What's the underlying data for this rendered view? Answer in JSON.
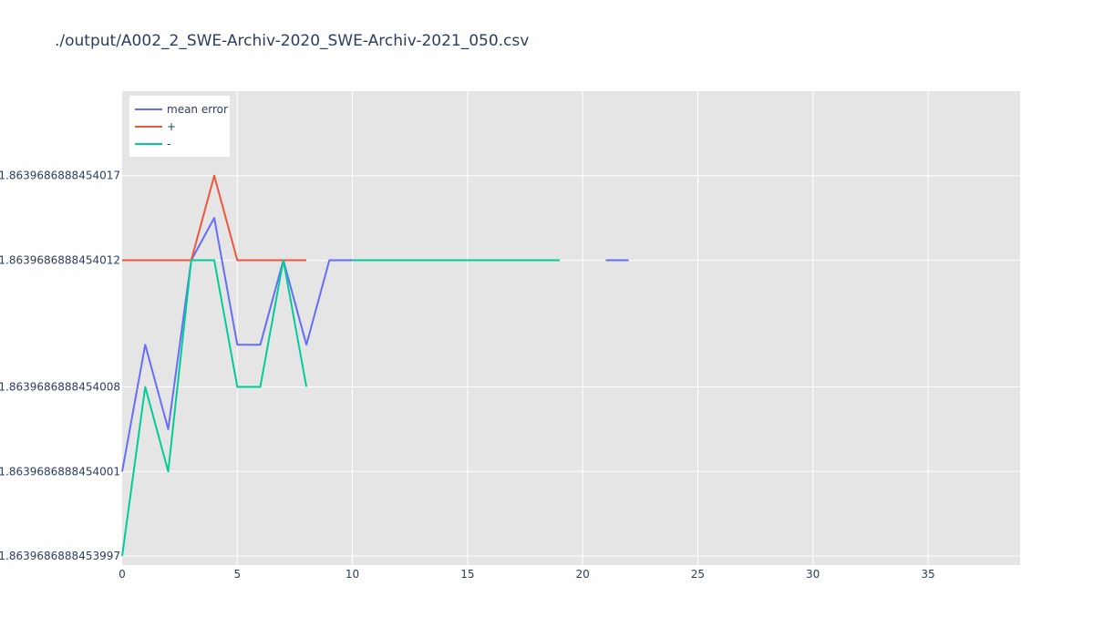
{
  "chart_data": {
    "type": "line",
    "title": "./output/A002_2_SWE-Archiv-2020_SWE-Archiv-2021_050.csv",
    "xlabel": "",
    "ylabel": "",
    "xlim": [
      0,
      39
    ],
    "xticks": [
      0,
      5,
      10,
      15,
      20,
      25,
      30,
      35
    ],
    "ylim_offset_units": "1e-16 above 1.8639686888453997",
    "ytick_labels": [
      "1.8639686888453997",
      "1.8639686888454001",
      "1.8639686888454008",
      "1.8639686888454012",
      "1.8639686888454017"
    ],
    "yticks_offset": [
      0,
      4,
      8,
      14,
      18
    ],
    "yrange_offset": [
      0,
      22
    ],
    "grid": true,
    "legend_position": "top-left",
    "series": [
      {
        "name": "mean error",
        "color": "#636efa",
        "x": [
          0,
          1,
          2,
          3,
          4,
          5,
          6,
          7,
          8,
          9,
          10,
          11,
          12,
          13,
          14,
          15,
          16,
          17,
          18,
          19,
          20,
          21,
          22
        ],
        "y_offset": [
          4,
          10,
          6,
          14,
          16,
          10,
          10,
          14,
          10,
          14,
          14,
          14,
          14,
          14,
          14,
          14,
          14,
          14,
          14,
          14,
          null,
          14,
          14
        ]
      },
      {
        "name": "+",
        "color": "#ef553b",
        "x": [
          0,
          1,
          2,
          3,
          4,
          5,
          6,
          7,
          8
        ],
        "y_offset": [
          14,
          14,
          14,
          14,
          18,
          14,
          14,
          14,
          14
        ]
      },
      {
        "name": "-",
        "color": "#00cc96",
        "x": [
          0,
          1,
          2,
          3,
          4,
          5,
          6,
          7,
          8,
          9,
          10,
          11,
          12,
          13,
          14,
          15,
          16,
          17,
          18,
          19
        ],
        "y_offset": [
          0,
          8,
          4,
          14,
          14,
          8,
          8,
          14,
          8,
          null,
          14,
          14,
          14,
          14,
          14,
          14,
          14,
          14,
          14,
          14
        ]
      }
    ]
  }
}
